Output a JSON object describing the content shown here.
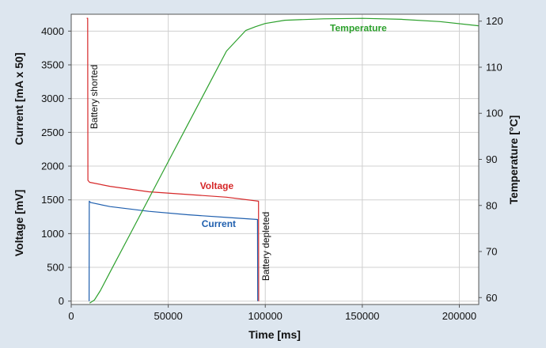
{
  "chart_data": {
    "type": "line",
    "title": "",
    "xlabel": "Time [ms]",
    "ylabel_left_line1": "Voltage [mV]",
    "ylabel_left_line2": "Current [mA x 50]",
    "ylabel_right": "Temperature [°C]",
    "xlim": [
      0,
      210000
    ],
    "ylim_left": [
      -50,
      4250
    ],
    "ylim_right": [
      58.5,
      121.5
    ],
    "x_ticks": [
      0,
      50000,
      100000,
      150000,
      200000
    ],
    "x_tick_labels": [
      "0",
      "50000",
      "100000",
      "150000",
      "200000"
    ],
    "y_left_ticks": [
      0,
      500,
      1000,
      1500,
      2000,
      2500,
      3000,
      3500,
      4000
    ],
    "y_left_tick_labels": [
      "0",
      "500",
      "1000",
      "1500",
      "2000",
      "2500",
      "3000",
      "3500",
      "4000"
    ],
    "y_right_ticks": [
      60,
      70,
      80,
      90,
      100,
      110,
      120
    ],
    "y_right_tick_labels": [
      "60",
      "70",
      "80",
      "90",
      "100",
      "110",
      "120"
    ],
    "grid": true,
    "series": [
      {
        "name": "Voltage",
        "axis": "left",
        "color": "#d62728",
        "points": [
          [
            8000,
            4190
          ],
          [
            8500,
            4190
          ],
          [
            8600,
            1790
          ],
          [
            9500,
            1760
          ],
          [
            20000,
            1700
          ],
          [
            40000,
            1620
          ],
          [
            60000,
            1580
          ],
          [
            80000,
            1540
          ],
          [
            96500,
            1480
          ],
          [
            96600,
            0
          ]
        ]
      },
      {
        "name": "Current",
        "axis": "left",
        "color": "#1f5fae",
        "points": [
          [
            9200,
            0
          ],
          [
            9300,
            1480
          ],
          [
            10000,
            1460
          ],
          [
            20000,
            1400
          ],
          [
            40000,
            1330
          ],
          [
            60000,
            1280
          ],
          [
            80000,
            1240
          ],
          [
            96000,
            1210
          ],
          [
            96100,
            0
          ]
        ]
      },
      {
        "name": "Temperature",
        "axis": "right",
        "color": "#2ca02c",
        "points": [
          [
            9500,
            58.8
          ],
          [
            12000,
            59.5
          ],
          [
            15000,
            61.5
          ],
          [
            20000,
            65.5
          ],
          [
            30000,
            73.5
          ],
          [
            40000,
            81.5
          ],
          [
            50000,
            89.5
          ],
          [
            60000,
            97.5
          ],
          [
            70000,
            105.5
          ],
          [
            80000,
            113.5
          ],
          [
            90000,
            118.0
          ],
          [
            95000,
            118.8
          ],
          [
            100000,
            119.5
          ],
          [
            110000,
            120.2
          ],
          [
            130000,
            120.5
          ],
          [
            150000,
            120.6
          ],
          [
            170000,
            120.4
          ],
          [
            190000,
            119.9
          ],
          [
            210000,
            119.0
          ]
        ]
      }
    ],
    "series_labels": [
      {
        "text": "Voltage",
        "color": "#d62728",
        "x": 75000,
        "y": 1660,
        "axis": "left"
      },
      {
        "text": "Current",
        "color": "#1f5fae",
        "x": 76000,
        "y": 1100,
        "axis": "left"
      },
      {
        "text": "Temperature",
        "color": "#2ca02c",
        "x": 148000,
        "y": 4000,
        "axis": "left"
      }
    ],
    "annotations": [
      {
        "text": "Battery shorted",
        "x": 13500,
        "y": 2550,
        "axis": "left",
        "rotate": -90
      },
      {
        "text": "Battery depleted",
        "x": 102000,
        "y": 300,
        "axis": "left",
        "rotate": -90
      }
    ]
  }
}
